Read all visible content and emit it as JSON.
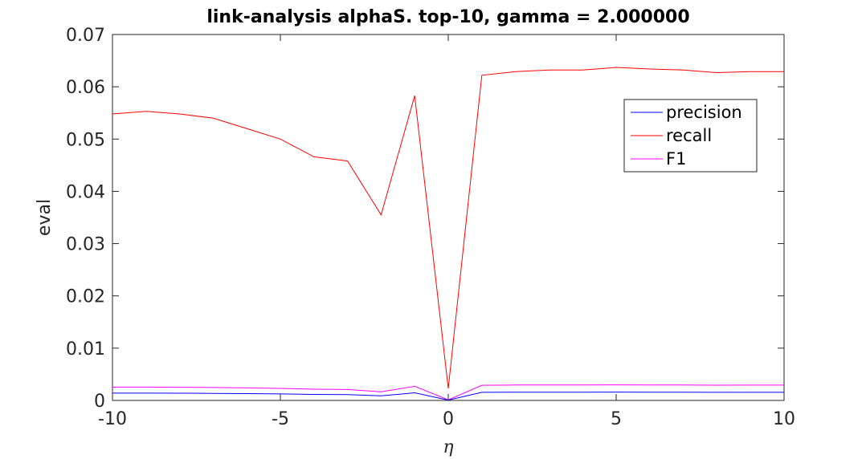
{
  "chart_data": {
    "type": "line",
    "title": "link-analysis alphaS. top-10, gamma = 2.000000",
    "xlabel": "η",
    "ylabel": "eval",
    "xlim": [
      -10,
      10
    ],
    "ylim": [
      0,
      0.07
    ],
    "x_ticks": [
      "-10",
      "-5",
      "0",
      "5",
      "10"
    ],
    "y_ticks": [
      "0",
      "0.01",
      "0.02",
      "0.03",
      "0.04",
      "0.05",
      "0.06",
      "0.07"
    ],
    "grid": false,
    "legend_position": "top-right",
    "x": [
      -10,
      -9,
      -8,
      -7,
      -6,
      -5,
      -4,
      -3,
      -2,
      -1,
      0,
      1,
      2,
      3,
      4,
      5,
      6,
      7,
      8,
      9,
      10
    ],
    "series": [
      {
        "name": "precision",
        "color": "#0000ff",
        "values": [
          0.0014,
          0.0014,
          0.00138,
          0.00135,
          0.0013,
          0.00125,
          0.00115,
          0.00112,
          0.00088,
          0.00145,
          5e-05,
          0.00155,
          0.00158,
          0.00158,
          0.00158,
          0.0016,
          0.00158,
          0.00158,
          0.00156,
          0.00156,
          0.00156
        ]
      },
      {
        "name": "recall",
        "color": "#ff0000",
        "values": [
          0.0548,
          0.0553,
          0.0548,
          0.054,
          0.052,
          0.05,
          0.0466,
          0.0458,
          0.0355,
          0.0583,
          0.0023,
          0.0622,
          0.0629,
          0.0632,
          0.0632,
          0.0637,
          0.0634,
          0.0632,
          0.0627,
          0.0629,
          0.0629
        ]
      },
      {
        "name": "F1",
        "color": "#ff00ff",
        "values": [
          0.00255,
          0.00255,
          0.00252,
          0.00248,
          0.0024,
          0.0023,
          0.00215,
          0.0021,
          0.00165,
          0.0027,
          0.0001,
          0.0029,
          0.00295,
          0.00295,
          0.00295,
          0.00297,
          0.00296,
          0.00295,
          0.00292,
          0.00293,
          0.00293
        ]
      }
    ]
  }
}
